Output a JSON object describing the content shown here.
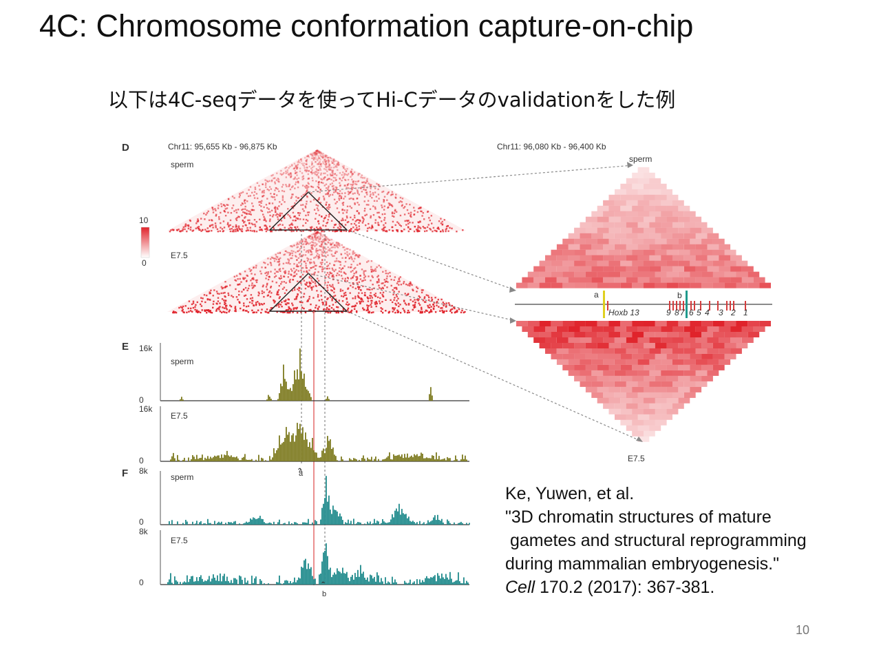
{
  "slide": {
    "title": "4C: Chromosome conformation capture-on-chip",
    "subtitle": "以下は4C-seqデータを使ってHi-Cデータのvalidationをした例",
    "page_number": "10"
  },
  "citation": {
    "line1": "Ke, Yuwen, et al.",
    "line2": "\"3D chromatin structures of mature",
    "line3": " gametes and structural reprogramming",
    "line4": "during mammalian embryogenesis.\"",
    "journal": "Cell",
    "line5_rest": " 170.2 (2017): 367-381."
  },
  "figure": {
    "panel_d": {
      "letter": "D",
      "region_left": "Chr11: 95,655 Kb - 96,875 Kb",
      "region_right": "Chr11: 96,080 Kb - 96,400 Kb",
      "map_top_label": "sperm",
      "map_bottom_label": "E7.5",
      "zoom_top_label": "sperm",
      "zoom_bottom_label": "E7.5",
      "scale_max": "10",
      "scale_min": "0",
      "marker_a": "a",
      "marker_b": "b",
      "gene_label": "Hoxb 13",
      "hox_numbers": [
        "9",
        "8",
        "7",
        "6",
        "5",
        "4",
        "3",
        "2",
        "1"
      ]
    },
    "panel_e": {
      "letter": "E",
      "track1_label": "sperm",
      "track2_label": "E7.5",
      "ymax": "16k",
      "ymin": "0",
      "viewpoint": "a"
    },
    "panel_f": {
      "letter": "F",
      "track1_label": "sperm",
      "track2_label": "E7.5",
      "ymax": "8k",
      "ymin": "0",
      "viewpoint": "b"
    },
    "colors": {
      "heatmap": "#e0232b",
      "track_e": "#7d7a1f",
      "track_f": "#1f8a8c",
      "marker_a": "#e0d020",
      "marker_b": "#1f9a8c",
      "viewpoint_arrow": "#e05a1a"
    }
  }
}
